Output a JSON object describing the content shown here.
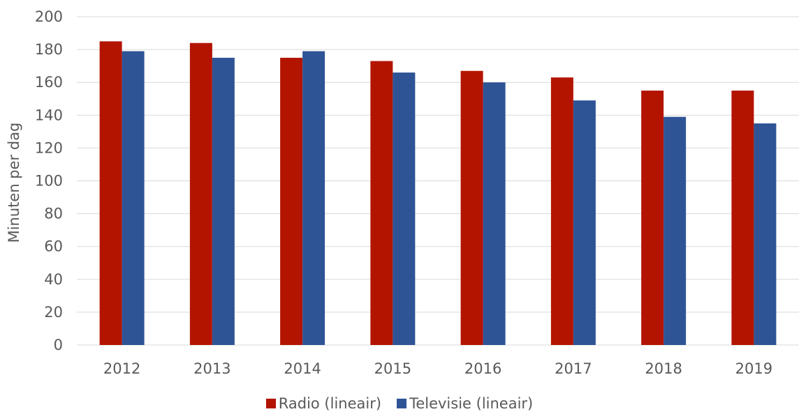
{
  "chart_data": {
    "type": "bar",
    "title": "",
    "xlabel": "",
    "ylabel": "Minuten per dag",
    "ylim": [
      0,
      200
    ],
    "yticks": [
      0,
      20,
      40,
      60,
      80,
      100,
      120,
      140,
      160,
      180,
      200
    ],
    "grid": true,
    "legend_position": "bottom",
    "categories": [
      "2012",
      "2013",
      "2014",
      "2015",
      "2016",
      "2017",
      "2018",
      "2019"
    ],
    "series": [
      {
        "name": "Radio (lineair)",
        "color": "#b31400",
        "values": [
          185,
          184,
          175,
          173,
          167,
          163,
          155,
          155
        ]
      },
      {
        "name": "Televisie (lineair)",
        "color": "#2f5496",
        "values": [
          179,
          175,
          179,
          166,
          160,
          149,
          139,
          135
        ]
      }
    ]
  }
}
